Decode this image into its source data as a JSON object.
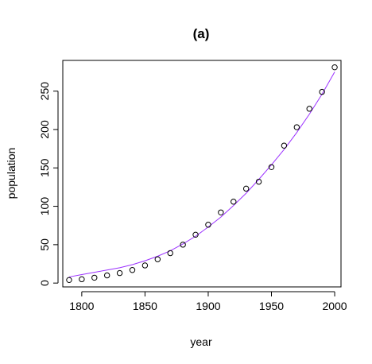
{
  "chart_data": {
    "type": "scatter",
    "title": "(a)",
    "xlabel": "year",
    "ylabel": "population",
    "xlim": [
      1785,
      2005
    ],
    "ylim": [
      -5,
      290
    ],
    "x_ticks": [
      1800,
      1850,
      1900,
      1950,
      2000
    ],
    "y_ticks": [
      0,
      50,
      100,
      150,
      200,
      250
    ],
    "grid": false,
    "legend": "none",
    "point_color": "#000000",
    "fit_color": "#9b30ff",
    "series": [
      {
        "kind": "points",
        "x": [
          1790,
          1800,
          1810,
          1820,
          1830,
          1840,
          1850,
          1860,
          1870,
          1880,
          1890,
          1900,
          1910,
          1920,
          1930,
          1940,
          1950,
          1960,
          1970,
          1980,
          1990,
          2000
        ],
        "y": [
          4,
          5,
          7,
          10,
          13,
          17,
          23,
          31,
          39,
          50,
          63,
          76,
          92,
          106,
          123,
          132,
          151,
          179,
          203,
          227,
          249,
          281
        ]
      },
      {
        "kind": "fit",
        "x": [
          1790,
          1800,
          1810,
          1820,
          1830,
          1840,
          1850,
          1860,
          1870,
          1880,
          1890,
          1900,
          1910,
          1920,
          1930,
          1940,
          1950,
          1960,
          1970,
          1980,
          1990,
          2000
        ],
        "y": [
          8,
          11,
          14,
          17,
          20,
          24,
          29,
          35,
          42,
          51,
          61,
          73,
          86,
          101,
          117,
          135,
          154,
          174,
          196,
          220,
          246,
          275
        ]
      }
    ]
  }
}
